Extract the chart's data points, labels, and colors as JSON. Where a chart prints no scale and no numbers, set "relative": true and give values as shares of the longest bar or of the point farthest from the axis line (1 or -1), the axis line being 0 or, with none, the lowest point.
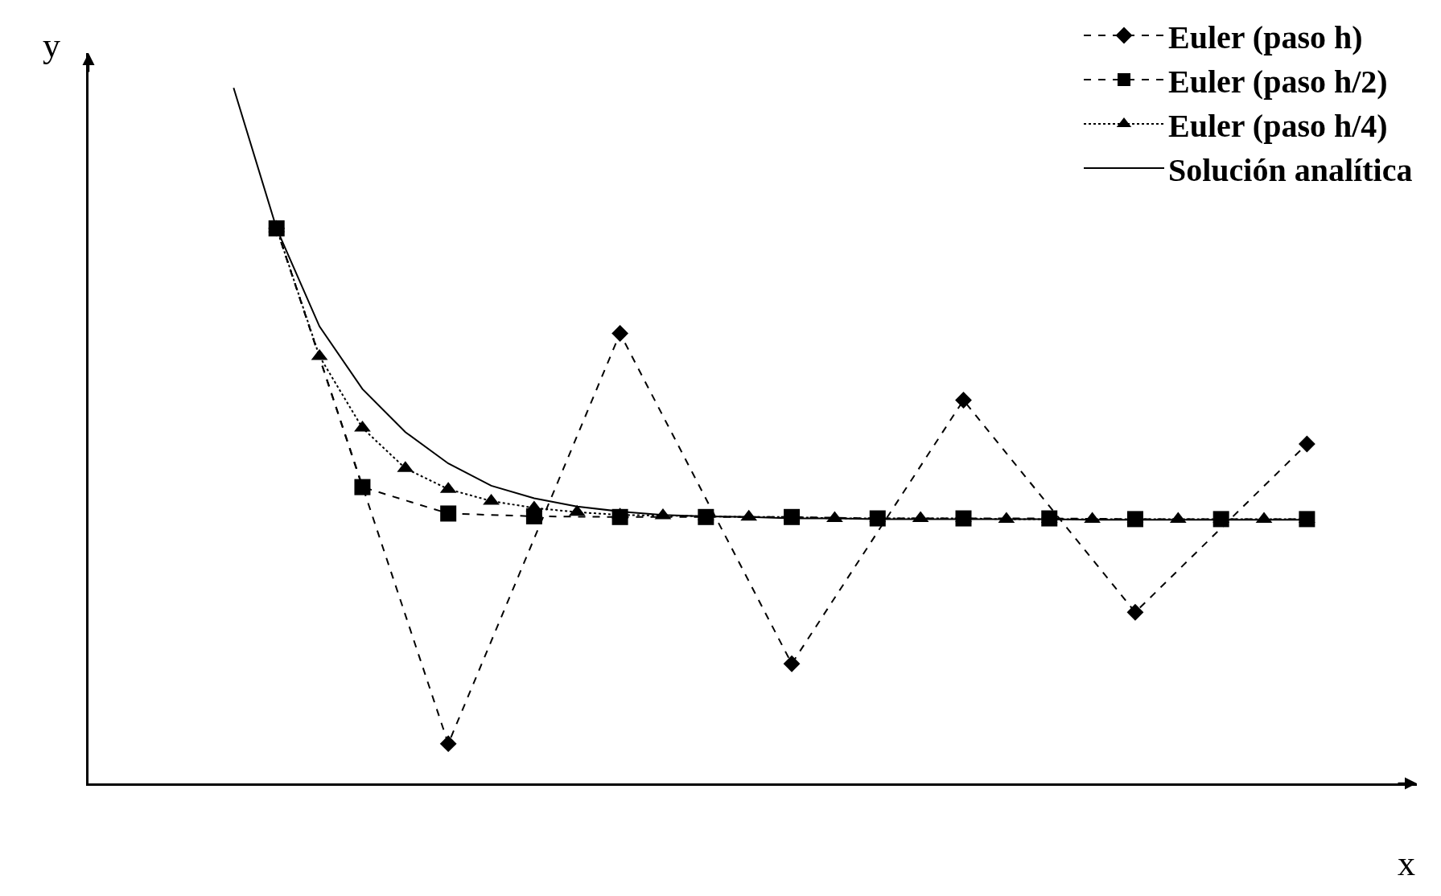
{
  "chart_data": {
    "type": "line",
    "relative": true,
    "xlabel": "x",
    "ylabel": "y",
    "legend": "top right",
    "categories": [
      null,
      null,
      null,
      null,
      null,
      null,
      null,
      null,
      null,
      null,
      null,
      null,
      null,
      null,
      null,
      null,
      null,
      null,
      null,
      null,
      null,
      null,
      null,
      null,
      null,
      null
    ],
    "series": [
      {
        "name": "Euler (paso h)",
        "color": "#000000",
        "marker": "diamond",
        "line_style": "dashed",
        "values": [
          null,
          0.798,
          null,
          null,
          null,
          0.057,
          null,
          null,
          null,
          0.647,
          null,
          null,
          null,
          0.172,
          null,
          null,
          null,
          0.551,
          null,
          null,
          null,
          0.246,
          null,
          null,
          null,
          0.488
        ]
      },
      {
        "name": "Euler (paso h/2)",
        "color": "#000000",
        "marker": "square",
        "line_style": "dashed",
        "values": [
          null,
          0.798,
          null,
          0.426,
          null,
          0.388,
          null,
          0.384,
          null,
          0.383,
          null,
          0.383,
          null,
          0.383,
          null,
          0.381,
          null,
          0.381,
          null,
          0.381,
          null,
          0.38,
          null,
          0.38,
          null,
          0.38
        ]
      },
      {
        "name": "Euler (paso h/4)",
        "color": "#000000",
        "marker": "triangle",
        "line_style": "dotted",
        "values": [
          null,
          0.798,
          0.614,
          0.511,
          0.453,
          0.423,
          0.406,
          0.396,
          0.39,
          0.386,
          0.385,
          0.384,
          0.383,
          0.383,
          0.381,
          0.381,
          0.381,
          0.381,
          0.38,
          0.38,
          0.38,
          0.38,
          0.38,
          0.38,
          0.38,
          0.38
        ]
      },
      {
        "name": "Solución analítica",
        "color": "#000000",
        "marker": "none",
        "line_style": "solid",
        "values": [
          1.0,
          0.798,
          0.657,
          0.567,
          0.505,
          0.46,
          0.428,
          0.41,
          0.398,
          0.391,
          0.386,
          0.384,
          0.383,
          0.381,
          0.381,
          0.38,
          0.38,
          0.38,
          0.38,
          0.38,
          0.379,
          0.379,
          0.379,
          0.379,
          0.379,
          0.379
        ]
      }
    ]
  }
}
